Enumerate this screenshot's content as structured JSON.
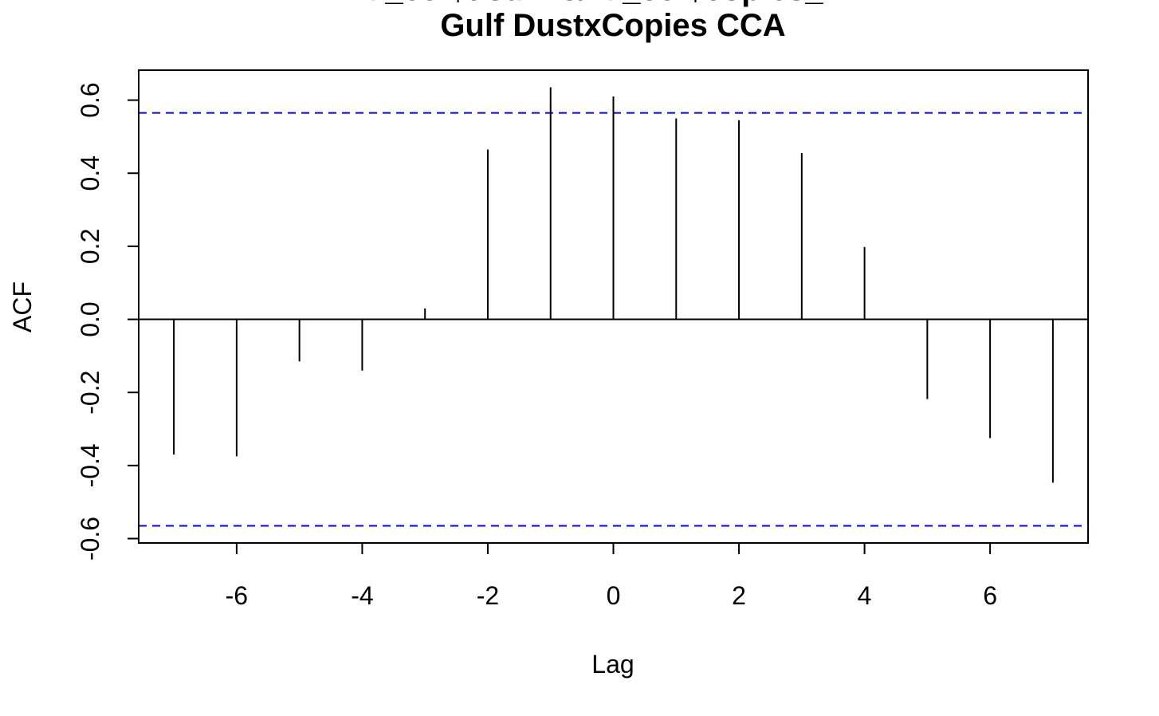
{
  "chart_data": {
    "type": "bar",
    "title_lines": [
      "fd_ccf$t.sum & fd_ccf$copies_mL",
      "Gulf DustxCopies CCA"
    ],
    "xlabel": "Lag",
    "ylabel": "ACF",
    "x": [
      -7,
      -6,
      -5,
      -4,
      -3,
      -2,
      -1,
      0,
      1,
      2,
      3,
      4,
      5,
      6,
      7
    ],
    "values": [
      -0.37,
      -0.375,
      -0.115,
      -0.14,
      0.03,
      0.465,
      0.635,
      0.61,
      0.55,
      0.545,
      0.455,
      0.198,
      -0.218,
      -0.325,
      -0.447
    ],
    "xlim": [
      -7.56,
      7.56
    ],
    "ylim": [
      -0.612,
      0.682
    ],
    "x_ticks": [
      -6,
      -4,
      -2,
      0,
      2,
      4,
      6
    ],
    "x_tick_labels": [
      "-6",
      "-4",
      "-2",
      "0",
      "2",
      "4",
      "6"
    ],
    "y_ticks": [
      -0.6,
      -0.4,
      -0.2,
      0.0,
      0.2,
      0.4,
      0.6
    ],
    "y_tick_labels": [
      "-0.6",
      "-0.4",
      "-0.2",
      "0.0",
      "0.2",
      "0.4",
      "0.6"
    ],
    "confidence_bounds": [
      0.565,
      -0.565
    ],
    "zero_line": true,
    "grid": false,
    "colors": {
      "bars": "#000000",
      "confidence": "#0000ff",
      "axes": "#000000"
    }
  }
}
